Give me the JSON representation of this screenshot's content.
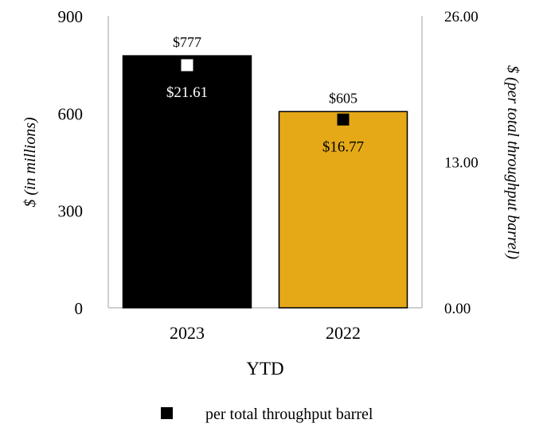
{
  "chart_data": {
    "type": "bar",
    "categories": [
      "2023",
      "2022"
    ],
    "series": [
      {
        "values": [
          777,
          605
        ],
        "labels": [
          "$777",
          "$605"
        ],
        "colors": [
          "#000000",
          "#e5a918"
        ],
        "axis": "left"
      },
      {
        "name": "per total throughput barrel",
        "type": "scatter",
        "values": [
          21.61,
          16.77
        ],
        "labels": [
          "$21.61",
          "$16.77"
        ],
        "colors": [
          "#ffffff",
          "#000000"
        ],
        "label_colors": [
          "#ffffff",
          "#000000"
        ],
        "axis": "right"
      }
    ],
    "xlabel": "YTD",
    "ylabel": "$ (in millions)",
    "y2label": "$ (per total throughput barrel)",
    "ylim": [
      0,
      900
    ],
    "yticks": [
      "0",
      "300",
      "600",
      "900"
    ],
    "y2lim": [
      0,
      26
    ],
    "y2ticks": [
      "0.00",
      "13.00",
      "26.00"
    ],
    "legend": {
      "position": "bottom",
      "entries": [
        "per total throughput barrel"
      ]
    },
    "grid": false
  }
}
